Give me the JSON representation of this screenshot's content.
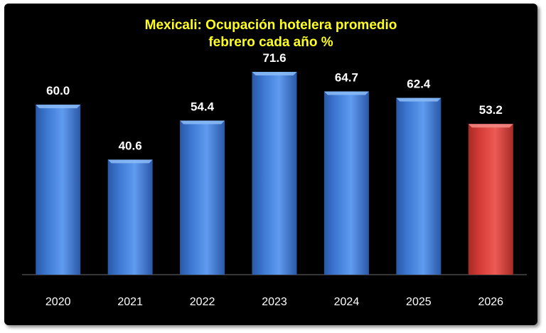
{
  "chart_data": {
    "type": "bar",
    "title": "Mexicali: Ocupación hotelera promedio",
    "subtitle": "febrero cada año %",
    "categories": [
      "2020",
      "2021",
      "2022",
      "2023",
      "2024",
      "2025",
      "2026"
    ],
    "values": [
      60.0,
      40.6,
      54.4,
      71.6,
      64.7,
      62.4,
      53.2
    ],
    "value_labels": [
      "60.0",
      "40.6",
      "54.4",
      "71.6",
      "64.7",
      "62.4",
      "53.2"
    ],
    "ylim": [
      0,
      80
    ],
    "grid": false,
    "legend": "none",
    "colors": {
      "background": "#000000",
      "title": "#ffff1e",
      "bar": "#3a74cf",
      "bar_highlight": "#d23a34",
      "text": "#ffffff"
    },
    "highlight_index": 6
  }
}
